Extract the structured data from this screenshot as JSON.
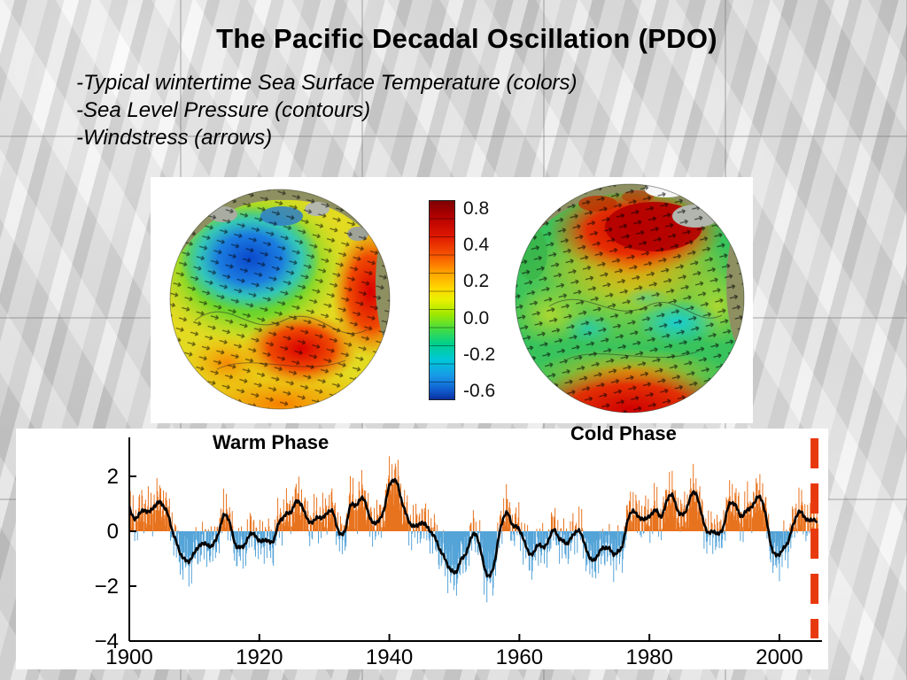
{
  "slide": {
    "title": "The Pacific Decadal Oscillation (PDO)",
    "bullets": [
      "-Typical wintertime Sea Surface Temperature (colors)",
      "-Sea Level Pressure (contours)",
      "-Windstress (arrows)"
    ]
  },
  "figure": {
    "warm_label": "Warm Phase",
    "cold_label": "Cold Phase",
    "colorbar": {
      "ticks": [
        "0.8",
        "0.4",
        "0.2",
        "0.0",
        "-0.2",
        "-0.6"
      ],
      "gradient": [
        "#7d0000 0%",
        "#b40000 8%",
        "#e01800 18%",
        "#f85a00 28%",
        "#ffa000 36%",
        "#ffd800 44%",
        "#e8f000 50%",
        "#a0e800 57%",
        "#4ade3c 64%",
        "#00d08c 72%",
        "#00c8d8 80%",
        "#189ae8 88%",
        "#1060d0 95%",
        "#0a30a0 100%"
      ]
    }
  },
  "chart_data": {
    "type": "bar",
    "description": "PDO index time series, monthly bars with smoothed black curve",
    "x_start": 1900,
    "x_end": 2005,
    "xticks": [
      1900,
      1920,
      1940,
      1960,
      1980,
      2000
    ],
    "yticks": [
      -4,
      -2,
      0,
      2
    ],
    "ylim": [
      -4,
      3.5
    ],
    "series": [
      {
        "name": "PDO index (annual, bars)",
        "positive_color": "#e8731e",
        "negative_color": "#55a4d8",
        "values_annual": [
          0.8,
          0.3,
          0.9,
          0.6,
          1.0,
          1.1,
          0.6,
          -0.3,
          -0.9,
          -1.2,
          -0.8,
          -0.4,
          -0.5,
          -0.6,
          0.2,
          0.9,
          -0.4,
          -0.7,
          -0.4,
          0.1,
          -0.5,
          -0.2,
          -0.6,
          0.4,
          0.6,
          0.7,
          1.3,
          0.6,
          0.2,
          0.6,
          0.4,
          1.0,
          0.1,
          -0.4,
          1.2,
          0.8,
          1.5,
          0.3,
          0.3,
          0.5,
          1.8,
          2.0,
          1.0,
          0.3,
          0.1,
          0.4,
          0.1,
          -0.2,
          -0.8,
          -1.2,
          -1.7,
          -1.0,
          -0.8,
          0.2,
          -0.6,
          -1.8,
          -1.5,
          0.1,
          0.9,
          0.1,
          0.2,
          -0.6,
          -1.0,
          -0.3,
          -0.8,
          0.2,
          -0.2,
          -0.5,
          -0.3,
          0.2,
          -0.4,
          -1.2,
          -0.9,
          -0.5,
          -0.7,
          -0.9,
          -0.5,
          0.9,
          0.6,
          0.4,
          0.5,
          0.9,
          0.3,
          1.6,
          1.0,
          0.4,
          1.0,
          1.7,
          0.6,
          -0.2,
          0.1,
          -0.3,
          0.9,
          1.2,
          0.4,
          0.8,
          0.9,
          1.5,
          0.5,
          -1.0,
          -0.8,
          -0.6,
          0.1,
          0.9,
          0.4,
          0.4
        ]
      },
      {
        "name": "smoothed PDO index",
        "color": "#000000"
      }
    ],
    "marker": {
      "type": "dashed-vertical-line",
      "x": 2005.4,
      "color": "#e8380d"
    }
  }
}
